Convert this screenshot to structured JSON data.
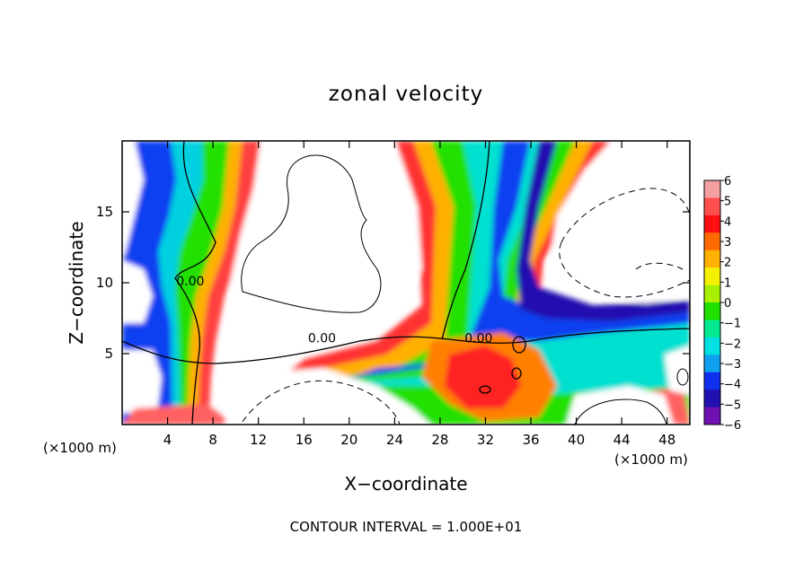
{
  "chart_data": {
    "type": "heatmap",
    "title": "zonal velocity",
    "xlabel": "X−coordinate",
    "ylabel": "Z−coordinate",
    "x_unit_left": "(×1000 m)",
    "x_unit_right": "(×1000 m)",
    "xlim": [
      0,
      50
    ],
    "ylim": [
      0,
      20
    ],
    "x_ticks": [
      4,
      8,
      12,
      16,
      20,
      24,
      28,
      32,
      36,
      40,
      44,
      48
    ],
    "y_ticks": [
      5,
      10,
      15
    ],
    "colorbar": {
      "levels": [
        6,
        5,
        4,
        3,
        2,
        1,
        0,
        -1,
        -2,
        -3,
        -4,
        -5,
        -6
      ],
      "labels": [
        "6",
        "5",
        "4",
        "3",
        "2",
        "1",
        "0",
        "−1",
        "−2",
        "−3",
        "−4",
        "−5",
        "−6"
      ],
      "colors": [
        "#f4a0a0",
        "#ff5050",
        "#ff1010",
        "#ff6a00",
        "#ffb000",
        "#f4f000",
        "#a8f000",
        "#20e000",
        "#00e890",
        "#00e0e0",
        "#10a0f0",
        "#1030f0",
        "#2010b0",
        "#7010b0"
      ]
    },
    "contour_labels": [
      {
        "text": "0.00",
        "x": 6.0,
        "z": 9.8
      },
      {
        "text": "0.00",
        "x": 17.6,
        "z": 5.8
      },
      {
        "text": "0.00",
        "x": 31.4,
        "z": 5.8
      }
    ],
    "footer": "CONTOUR INTERVAL = 1.000E+01"
  }
}
